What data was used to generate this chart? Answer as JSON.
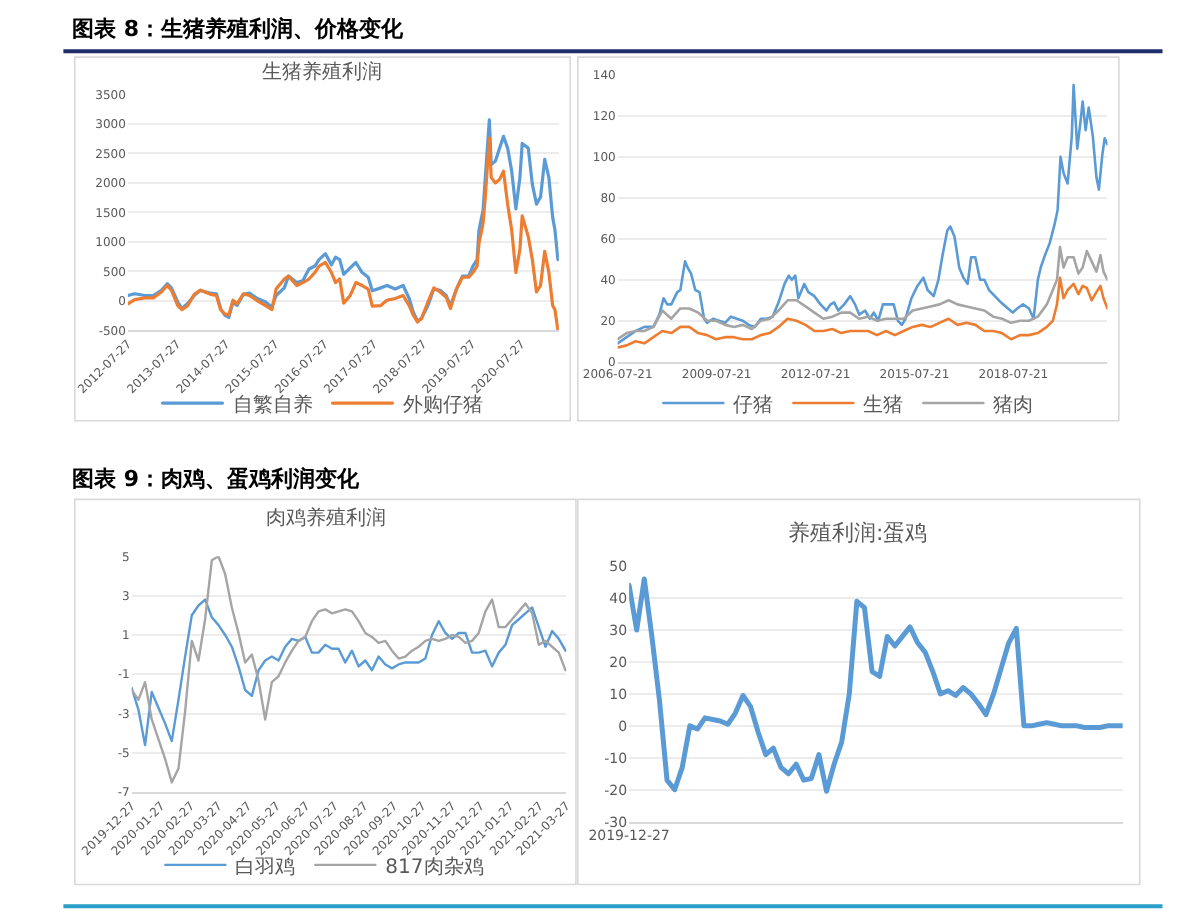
{
  "chart_data": [
    {
      "type": "line",
      "title": "生猪养殖利润",
      "annotations": [
        "图表 8：生猪养殖利润、价格变化"
      ],
      "x": [
        "2012-07-27",
        "2012-09-15",
        "2012-12-01",
        "2013-02-01",
        "2013-04-01",
        "2013-05-15",
        "2013-06-15",
        "2013-08-01",
        "2013-09-01",
        "2013-10-15",
        "2013-12-01",
        "2014-01-15",
        "2014-04-01",
        "2014-05-15",
        "2014-06-15",
        "2014-07-15",
        "2014-08-15",
        "2014-09-15",
        "2014-10-15",
        "2014-12-01",
        "2015-01-15",
        "2015-03-15",
        "2015-05-15",
        "2015-07-01",
        "2015-08-01",
        "2015-10-01",
        "2015-11-01",
        "2016-01-01",
        "2016-02-15",
        "2016-04-01",
        "2016-05-15",
        "2016-06-15",
        "2016-08-01",
        "2016-09-15",
        "2016-10-15",
        "2016-11-15",
        "2016-12-15",
        "2017-02-01",
        "2017-03-15",
        "2017-05-01",
        "2017-06-15",
        "2017-07-15",
        "2017-09-15",
        "2017-11-01",
        "2018-01-01",
        "2018-03-01",
        "2018-04-15",
        "2018-05-15",
        "2018-06-15",
        "2018-07-15",
        "2018-09-01",
        "2018-10-15",
        "2018-12-01",
        "2019-01-15",
        "2019-02-15",
        "2019-04-01",
        "2019-05-15",
        "2019-07-01",
        "2019-08-01",
        "2019-09-01",
        "2019-09-15",
        "2019-10-15",
        "2019-11-01",
        "2019-12-01",
        "2019-12-15",
        "2020-01-15",
        "2020-02-15",
        "2020-03-15",
        "2020-04-15",
        "2020-05-15",
        "2020-06-15",
        "2020-07-15",
        "2020-08-01",
        "2020-09-15",
        "2020-10-15",
        "2020-11-15",
        "2020-12-15",
        "2021-01-15",
        "2021-02-15",
        "2021-03-15",
        "2021-04-01",
        "2021-04-23"
      ],
      "series": [
        {
          "name": "自繁自养",
          "color": "#5b9bd5",
          "values": [
            90,
            120,
            90,
            90,
            180,
            290,
            220,
            -20,
            -130,
            -40,
            90,
            180,
            130,
            120,
            -130,
            -240,
            -280,
            -20,
            -80,
            110,
            130,
            40,
            -20,
            -110,
            90,
            220,
            420,
            310,
            340,
            540,
            590,
            700,
            800,
            610,
            740,
            700,
            450,
            560,
            650,
            480,
            400,
            170,
            220,
            260,
            200,
            260,
            40,
            -190,
            -340,
            -300,
            -80,
            200,
            180,
            90,
            -80,
            200,
            420,
            420,
            590,
            700,
            1200,
            1530,
            2090,
            3070,
            2310,
            2370,
            2590,
            2790,
            2590,
            2200,
            1560,
            2090,
            2670,
            2590,
            1980,
            1640,
            1760,
            2400,
            2090,
            1420,
            1200,
            700
          ]
        },
        {
          "name": "外购仔猪",
          "color": "#ed7d31",
          "values": [
            -50,
            20,
            50,
            50,
            150,
            260,
            180,
            -80,
            -150,
            -80,
            110,
            180,
            110,
            90,
            -150,
            -220,
            -240,
            10,
            -50,
            120,
            90,
            0,
            -80,
            -150,
            200,
            370,
            420,
            260,
            310,
            370,
            480,
            590,
            650,
            480,
            310,
            370,
            -40,
            90,
            310,
            260,
            200,
            -90,
            -80,
            10,
            40,
            90,
            -80,
            -240,
            -360,
            -300,
            -20,
            220,
            150,
            60,
            -130,
            200,
            400,
            400,
            480,
            590,
            980,
            1310,
            1760,
            2760,
            2090,
            2000,
            2060,
            2200,
            1640,
            1200,
            480,
            870,
            1440,
            1090,
            700,
            150,
            260,
            840,
            480,
            -80,
            -150,
            -490
          ]
        }
      ],
      "xlim": [
        "2012-07-27",
        "2021-04-30"
      ],
      "xticks": [
        "2012-07-27",
        "2013-07-27",
        "2014-07-27",
        "2015-07-27",
        "2016-07-27",
        "2017-07-27",
        "2018-07-27",
        "2019-07-27",
        "2020-07-27"
      ],
      "ylim": [
        -500,
        3500
      ],
      "yticks": [
        -500,
        0,
        500,
        1000,
        1500,
        2000,
        2500,
        3000,
        3500
      ],
      "grid": "y",
      "legend": "bottom"
    },
    {
      "type": "line",
      "x": [
        "2006-07-21",
        "2006-10-28",
        "2007-02-05",
        "2007-05-13",
        "2007-08-21",
        "2007-11-28",
        "2008-03-06",
        "2008-06-14",
        "2008-09-21",
        "2008-12-28",
        "2009-04-06",
        "2009-07-14",
        "2009-10-22",
        "2010-01-28",
        "2010-05-07",
        "2010-08-14",
        "2010-11-22",
        "2011-02-28",
        "2011-06-07",
        "2011-09-15",
        "2011-12-22",
        "2012-04-01",
        "2012-07-08",
        "2012-10-15",
        "2013-01-23",
        "2013-05-01",
        "2013-08-08",
        "2013-11-16",
        "2014-02-23",
        "2014-06-01",
        "2014-09-08",
        "2014-12-16",
        "2015-03-24",
        "2015-07-02",
        "2015-10-09",
        "2016-01-17",
        "2016-04-24",
        "2016-08-02",
        "2016-11-09",
        "2017-02-17",
        "2017-05-25",
        "2017-09-02",
        "2017-12-10",
        "2018-03-17",
        "2018-06-25",
        "2018-10-03",
        "2019-01-10",
        "2019-04-18",
        "2019-07-26",
        "2019-10-01",
        "2019-11-16",
        "2019-12-19",
        "2020-01-28",
        "2020-03-13",
        "2020-05-18",
        "2020-07-11",
        "2020-08-26",
        "2020-10-12",
        "2020-12-04",
        "2021-01-26",
        "2021-03-11",
        "2021-04-14",
        "2021-05-28"
      ],
      "series": [
        {
          "name": "仔猪",
          "color": "#5b9bd5",
          "x": [
            "2006-07-21",
            "2006-10-28",
            "2007-02-05",
            "2007-05-13",
            "2007-08-21",
            "2007-10-26",
            "2007-12-11",
            "2008-01-20",
            "2008-03-06",
            "2008-05-11",
            "2008-06-14",
            "2008-08-05",
            "2008-09-02",
            "2008-10-11",
            "2008-11-26",
            "2009-01-12",
            "2009-03-04",
            "2009-04-06",
            "2009-06-11",
            "2009-08-17",
            "2009-10-22",
            "2009-12-26",
            "2010-03-02",
            "2010-05-07",
            "2010-07-12",
            "2010-09-17",
            "2010-11-22",
            "2011-01-27",
            "2011-04-02",
            "2011-06-07",
            "2011-08-12",
            "2011-09-28",
            "2011-11-01",
            "2011-12-09",
            "2012-01-12",
            "2012-03-17",
            "2012-05-02",
            "2012-07-08",
            "2012-09-13",
            "2012-11-18",
            "2013-01-03",
            "2013-02-12",
            "2013-03-28",
            "2013-06-03",
            "2013-08-08",
            "2013-10-01",
            "2013-11-16",
            "2014-01-21",
            "2014-03-13",
            "2014-04-28",
            "2014-06-14",
            "2014-08-06",
            "2014-10-11",
            "2014-12-03",
            "2015-01-19",
            "2015-03-04",
            "2015-04-13",
            "2015-06-18",
            "2015-08-23",
            "2015-10-28",
            "2015-12-14",
            "2016-02-19",
            "2016-04-11",
            "2016-05-27",
            "2016-07-19",
            "2016-08-21",
            "2016-10-07",
            "2016-11-28",
            "2017-01-14",
            "2017-03-01",
            "2017-04-09",
            "2017-05-25",
            "2017-07-17",
            "2017-09-02",
            "2017-10-24",
            "2017-12-28",
            "2018-03-04",
            "2018-05-22",
            "2018-07-15",
            "2018-09-01",
            "2018-11-05",
            "2019-01-10",
            "2019-03-02",
            "2019-04-18",
            "2019-05-20",
            "2019-07-06",
            "2019-08-28",
            "2019-10-20",
            "2019-11-23",
            "2019-12-25",
            "2020-01-28",
            "2020-03-13",
            "2020-04-28",
            "2020-05-18",
            "2020-06-28",
            "2020-08-07",
            "2020-08-26",
            "2020-09-28",
            "2020-11-01",
            "2020-12-17",
            "2021-01-26",
            "2021-02-22",
            "2021-04-01",
            "2021-04-27",
            "2021-05-28"
          ],
          "values": [
            9,
            12,
            15,
            17,
            17,
            23,
            31,
            28,
            28,
            34,
            35,
            49,
            46,
            43,
            35,
            34,
            21,
            19,
            21,
            20,
            19,
            22,
            21,
            20,
            18,
            17,
            21,
            21,
            22,
            29,
            38,
            42,
            40,
            42,
            31,
            38,
            34,
            32,
            28,
            25,
            28,
            29,
            25,
            28,
            32,
            28,
            23,
            25,
            21,
            24,
            20,
            28,
            28,
            28,
            20,
            18,
            21,
            31,
            37,
            41,
            35,
            32,
            40,
            52,
            64,
            66,
            61,
            46,
            41,
            38,
            51,
            51,
            40,
            40,
            35,
            32,
            29,
            26,
            24,
            26,
            28,
            26,
            21,
            40,
            46,
            52,
            58,
            67,
            74,
            100,
            92,
            87,
            110,
            135,
            104,
            119,
            127,
            113,
            124,
            110,
            90,
            84,
            101,
            109,
            106
          ]
        },
        {
          "name": "生猪",
          "color": "#ed7d31",
          "values": [
            7,
            8,
            10,
            9,
            12,
            15,
            14,
            17,
            17,
            14,
            13,
            11,
            12,
            12,
            11,
            11,
            13,
            14,
            17,
            21,
            20,
            18,
            15,
            15,
            16,
            14,
            15,
            15,
            15,
            13,
            15,
            13,
            15,
            17,
            18,
            17,
            19,
            21,
            18,
            19,
            18,
            15,
            15,
            14,
            11,
            13,
            13,
            14,
            17,
            20,
            28,
            41,
            31,
            35,
            38,
            33,
            37,
            36,
            30,
            34,
            37,
            31,
            26
          ]
        },
        {
          "name": "猪肉",
          "color": "#a5a5a5",
          "values": [
            11,
            14,
            15,
            15,
            17,
            25,
            21,
            26,
            26,
            24,
            20,
            20,
            18,
            17,
            18,
            16,
            20,
            21,
            25,
            30,
            30,
            27,
            24,
            21,
            22,
            24,
            24,
            21,
            22,
            20,
            21,
            21,
            21,
            25,
            26,
            27,
            28,
            30,
            28,
            27,
            26,
            25,
            22,
            21,
            19,
            20,
            20,
            22,
            28,
            35,
            40,
            56,
            46,
            51,
            51,
            43,
            46,
            54,
            49,
            44,
            52,
            44,
            40
          ]
        }
      ],
      "xlim": [
        "2006-07-21",
        "2021-05-28"
      ],
      "xticks": [
        "2006-07-21",
        "2009-07-21",
        "2012-07-21",
        "2015-07-21",
        "2018-07-21"
      ],
      "ylim": [
        0,
        140
      ],
      "yticks": [
        0,
        20,
        40,
        60,
        80,
        100,
        120,
        140
      ],
      "grid": "y",
      "legend": "bottom"
    },
    {
      "type": "line",
      "title": "肉鸡养殖利润",
      "annotations": [
        "图表 9：肉鸡、蛋鸡利润变化"
      ],
      "x": [
        "2019-12-27",
        "2020-01-03",
        "2020-01-10",
        "2020-01-17",
        "2020-01-24",
        "2020-01-31",
        "2020-02-07",
        "2020-02-14",
        "2020-02-21",
        "2020-02-28",
        "2020-03-06",
        "2020-03-13",
        "2020-03-20",
        "2020-03-27",
        "2020-04-03",
        "2020-04-10",
        "2020-04-17",
        "2020-04-24",
        "2020-05-01",
        "2020-05-08",
        "2020-05-15",
        "2020-05-22",
        "2020-05-29",
        "2020-06-05",
        "2020-06-12",
        "2020-06-19",
        "2020-06-26",
        "2020-07-03",
        "2020-07-10",
        "2020-07-17",
        "2020-07-24",
        "2020-07-31",
        "2020-08-07",
        "2020-08-14",
        "2020-08-21",
        "2020-08-28",
        "2020-09-04",
        "2020-09-11",
        "2020-09-18",
        "2020-09-25",
        "2020-10-02",
        "2020-10-09",
        "2020-10-16",
        "2020-10-23",
        "2020-10-30",
        "2020-11-06",
        "2020-11-13",
        "2020-11-20",
        "2020-11-27",
        "2020-12-04",
        "2020-12-11",
        "2020-12-18",
        "2020-12-25",
        "2021-01-01",
        "2021-01-08",
        "2021-01-15",
        "2021-01-22",
        "2021-01-29",
        "2021-02-05",
        "2021-02-12",
        "2021-02-19",
        "2021-02-26",
        "2021-03-05",
        "2021-03-12",
        "2021-03-19",
        "2021-03-26"
      ],
      "series": [
        {
          "name": "白羽鸡",
          "color": "#5b9bd5",
          "values": [
            -1.7,
            -2.8,
            -4.6,
            -1.9,
            -2.7,
            -3.5,
            -4.4,
            -2.3,
            -0.1,
            2.0,
            2.5,
            2.8,
            1.9,
            1.5,
            1.0,
            0.4,
            -0.6,
            -1.8,
            -2.1,
            -0.8,
            -0.3,
            -0.1,
            -0.3,
            0.4,
            0.8,
            0.7,
            0.9,
            0.1,
            0.1,
            0.5,
            0.3,
            0.3,
            -0.4,
            0.2,
            -0.6,
            -0.3,
            -0.8,
            -0.1,
            -0.5,
            -0.7,
            -0.5,
            -0.4,
            -0.4,
            -0.4,
            -0.2,
            1.0,
            1.7,
            1.1,
            0.8,
            1.1,
            1.1,
            0.1,
            0.1,
            0.2,
            -0.6,
            0.1,
            0.5,
            1.5,
            1.8,
            2.1,
            2.4,
            1.4,
            0.4,
            1.2,
            0.8,
            0.2
          ]
        },
        {
          "name": "817肉杂鸡",
          "color": "#a5a5a5",
          "values": [
            -1.8,
            -2.3,
            -1.4,
            -3.3,
            -4.3,
            -5.3,
            -6.5,
            -5.8,
            -2.9,
            0.7,
            -0.3,
            1.8,
            4.8,
            5.0,
            4.1,
            2.4,
            1.1,
            -0.4,
            0.0,
            -1.3,
            -3.3,
            -1.4,
            -1.1,
            -0.4,
            0.2,
            0.7,
            0.9,
            1.7,
            2.2,
            2.3,
            2.1,
            2.2,
            2.3,
            2.2,
            1.7,
            1.1,
            0.9,
            0.6,
            0.7,
            0.2,
            -0.2,
            -0.1,
            0.2,
            0.4,
            0.7,
            0.8,
            0.7,
            0.8,
            1.0,
            0.9,
            0.6,
            0.7,
            1.1,
            2.2,
            2.8,
            1.4,
            1.4,
            1.8,
            2.2,
            2.6,
            2.1,
            0.5,
            0.7,
            0.4,
            0.1,
            -0.8
          ]
        }
      ],
      "xlim": [
        "2019-12-27",
        "2021-03-27"
      ],
      "xticks": [
        "2019-12-27",
        "2020-01-27",
        "2020-02-27",
        "2020-03-27",
        "2020-04-27",
        "2020-05-27",
        "2020-06-27",
        "2020-07-27",
        "2020-08-27",
        "2020-09-27",
        "2020-10-27",
        "2020-11-27",
        "2020-12-27",
        "2021-01-27",
        "2021-02-27",
        "2021-03-27"
      ],
      "ylim": [
        -7,
        5
      ],
      "yticks": [
        -7,
        -5,
        -3,
        -1,
        1,
        3,
        5
      ],
      "grid": "y",
      "legend": "bottom"
    },
    {
      "type": "line",
      "title": "养殖利润:蛋鸡",
      "categories": [
        "2019-12-27",
        null,
        null,
        null,
        null,
        null,
        null,
        null,
        null,
        null,
        null,
        null,
        null,
        null,
        null,
        null,
        null,
        null,
        null,
        null,
        null,
        null,
        null,
        null,
        null,
        null,
        null,
        null,
        null,
        null,
        null,
        null,
        null,
        null,
        null,
        null,
        null,
        null,
        null,
        null,
        null,
        null,
        null,
        null,
        null,
        null,
        null,
        null,
        null,
        null,
        null,
        null,
        null,
        null,
        null,
        null,
        null,
        null,
        null,
        null,
        null,
        null,
        null,
        null,
        null,
        null
      ],
      "color": "#5b9bd5",
      "values": [
        44,
        30,
        46,
        28,
        8,
        -17,
        -20,
        -13,
        0,
        -1,
        2.5,
        2,
        1.5,
        0.5,
        4,
        9.5,
        6,
        -2,
        -9,
        -7,
        -13,
        -15,
        -12,
        -17,
        -16.5,
        -9,
        -20.5,
        -12,
        -5,
        10,
        39,
        37,
        17,
        15.5,
        28,
        25,
        28,
        31,
        26,
        23,
        17,
        10,
        11,
        9.5,
        12,
        10,
        7,
        3.5,
        10,
        18,
        26,
        30.5,
        0,
        0,
        0.5,
        1,
        0.5,
        0,
        0,
        0,
        -0.5,
        -0.5,
        -0.5,
        0,
        0,
        0
      ],
      "ylim": [
        -30,
        50
      ],
      "yticks": [
        -30,
        -20,
        -10,
        0,
        10,
        20,
        30,
        40,
        50
      ],
      "grid": "y"
    }
  ]
}
